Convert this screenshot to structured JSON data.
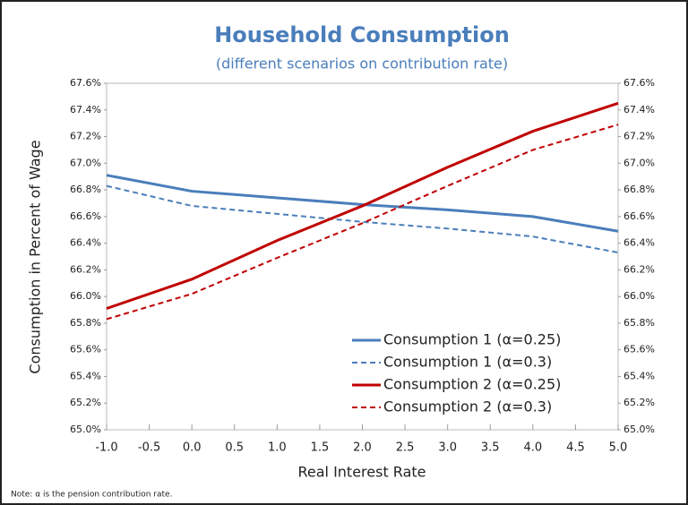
{
  "chart_data": {
    "type": "line",
    "title": "Household Consumption",
    "subtitle": "(different scenarios on contribution rate)",
    "xlabel": "Real Interest Rate",
    "ylabel": "Consumption in Percent of Wage",
    "note": "Note: α is the pension contribution rate.",
    "x": [
      -1,
      0,
      1,
      2,
      3,
      4,
      5
    ],
    "series": [
      {
        "name": "Consumption 1 (α=0.25)",
        "color": "#4a7ebb",
        "dashed": false,
        "values": [
          66.91,
          66.79,
          66.74,
          66.69,
          66.65,
          66.6,
          66.49
        ]
      },
      {
        "name": "Consumption 1 (α=0.3)",
        "color": "#4a7ebb",
        "dashed": true,
        "values": [
          66.83,
          66.68,
          66.62,
          66.56,
          66.51,
          66.45,
          66.33
        ]
      },
      {
        "name": "Consumption 2 (α=0.25)",
        "color": "#c00000",
        "dashed": false,
        "values": [
          65.91,
          66.13,
          66.42,
          66.68,
          66.97,
          67.24,
          67.45
        ]
      },
      {
        "name": "Consumption 2 (α=0.3)",
        "color": "#c00000",
        "dashed": true,
        "values": [
          65.83,
          66.02,
          66.29,
          66.55,
          66.83,
          67.1,
          67.29
        ]
      }
    ],
    "xlim": [
      -1,
      5
    ],
    "xticks": [
      {
        "value": -1,
        "label": "-1.0"
      },
      {
        "value": -0.5,
        "label": "-0.5"
      },
      {
        "value": 0,
        "label": "0.0"
      },
      {
        "value": 0.5,
        "label": "0.5"
      },
      {
        "value": 1,
        "label": "1.0"
      },
      {
        "value": 1.5,
        "label": "1.5"
      },
      {
        "value": 2,
        "label": "2.0"
      },
      {
        "value": 2.5,
        "label": "2.5"
      },
      {
        "value": 3,
        "label": "3.0"
      },
      {
        "value": 3.5,
        "label": "3.5"
      },
      {
        "value": 4,
        "label": "4.0"
      },
      {
        "value": 4.5,
        "label": "4.5"
      },
      {
        "value": 5,
        "label": "5.0"
      }
    ],
    "ylim": [
      65,
      67.6
    ],
    "yticks": [
      {
        "value": 65,
        "label": "65.0%"
      },
      {
        "value": 65.2,
        "label": "65.2%"
      },
      {
        "value": 65.4,
        "label": "65.4%"
      },
      {
        "value": 65.6,
        "label": "65.6%"
      },
      {
        "value": 65.8,
        "label": "65.8%"
      },
      {
        "value": 66,
        "label": "66.0%"
      },
      {
        "value": 66.2,
        "label": "66.2%"
      },
      {
        "value": 66.4,
        "label": "66.4%"
      },
      {
        "value": 66.6,
        "label": "66.6%"
      },
      {
        "value": 66.8,
        "label": "66.8%"
      },
      {
        "value": 67,
        "label": "67.0%"
      },
      {
        "value": 67.2,
        "label": "67.2%"
      },
      {
        "value": 67.4,
        "label": "67.4%"
      },
      {
        "value": 67.6,
        "label": "67.6%"
      }
    ],
    "y2lim": [
      65,
      67.6
    ],
    "y2ticks": [
      {
        "value": 65,
        "label": "65.0%"
      },
      {
        "value": 65.2,
        "label": "65.2%"
      },
      {
        "value": 65.4,
        "label": "65.4%"
      },
      {
        "value": 65.6,
        "label": "65.6%"
      },
      {
        "value": 65.8,
        "label": "65.8%"
      },
      {
        "value": 66,
        "label": "66.0%"
      },
      {
        "value": 66.2,
        "label": "66.2%"
      },
      {
        "value": 66.4,
        "label": "66.4%"
      },
      {
        "value": 66.6,
        "label": "66.6%"
      },
      {
        "value": 66.8,
        "label": "66.8%"
      },
      {
        "value": 67,
        "label": "67.0%"
      },
      {
        "value": 67.2,
        "label": "67.2%"
      },
      {
        "value": 67.4,
        "label": "67.4%"
      },
      {
        "value": 67.6,
        "label": "67.6%"
      }
    ],
    "legend": "lower right"
  }
}
